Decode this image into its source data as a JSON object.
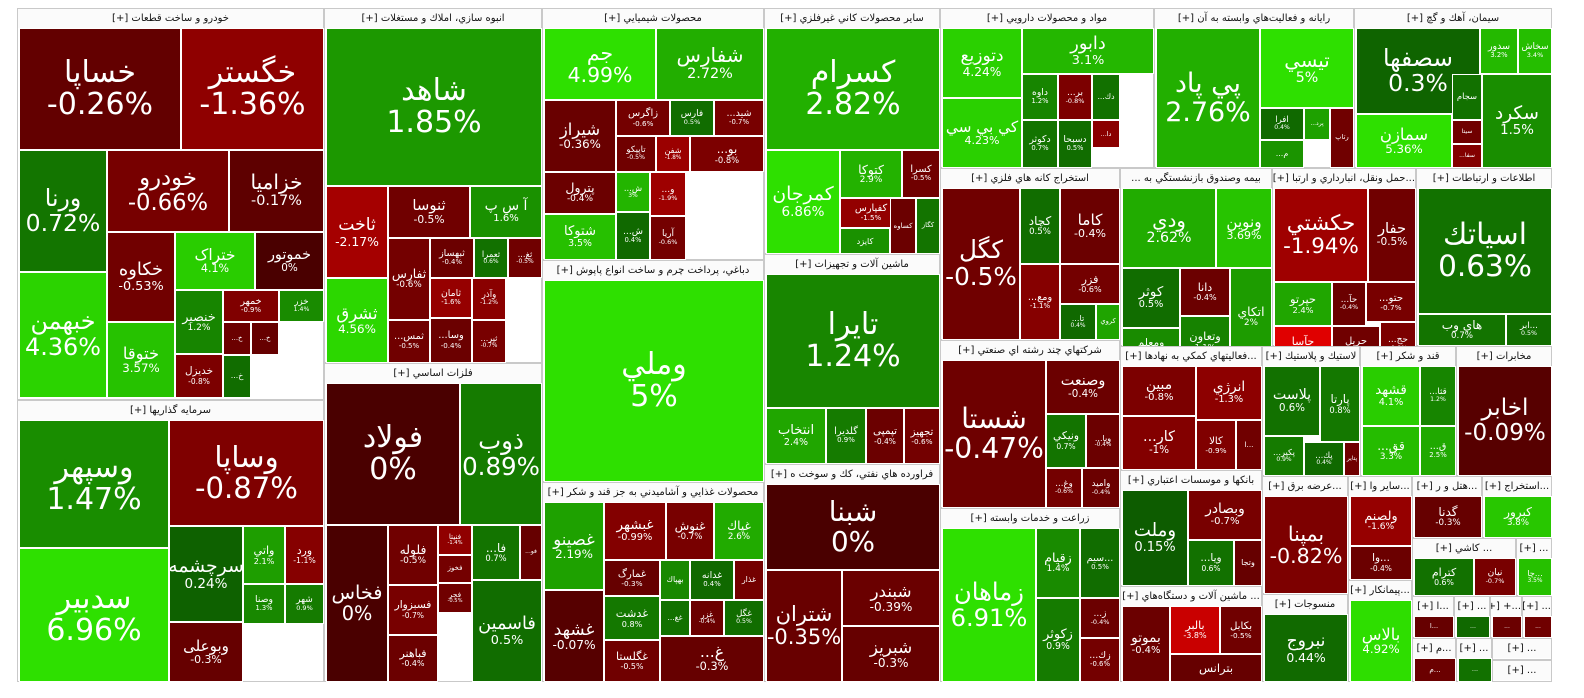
{
  "chart_data": {
    "type": "treemap",
    "title": "Market map",
    "scale": {
      "min": -5,
      "max": 5,
      "neg_color": "#e00000",
      "neutral_color": "#4a0000",
      "pos_color": "#2ee000"
    },
    "sectors": [
      {
        "id": "s1",
        "name": "خودرو و ساخت قطعات [+]",
        "tiles": [
          {
            "sym": "خساپا",
            "pct": -0.26
          },
          {
            "sym": "خگستر",
            "pct": -1.36
          },
          {
            "sym": "ورنا",
            "pct": 0.72
          },
          {
            "sym": "خودرو",
            "pct": -0.66
          },
          {
            "sym": "خزامیا",
            "pct": -0.17
          },
          {
            "sym": "خبهمن",
            "pct": 4.36
          },
          {
            "sym": "خکاوه",
            "pct": -0.53
          },
          {
            "sym": "ختراک",
            "pct": 4.1
          },
          {
            "sym": "خموتور",
            "pct": 0
          },
          {
            "sym": "ختوقا",
            "pct": 3.57
          },
          {
            "sym": "خنصير",
            "pct": 1.2
          },
          {
            "sym": "خمهر",
            "pct": -0.9
          },
          {
            "sym": "خزر",
            "pct": 1.4
          },
          {
            "sym": "خدیزل",
            "pct": -0.8
          },
          {
            "sym": "خ...",
            "pct": -0.4
          },
          {
            "sym": "خ...",
            "pct": -0.3
          },
          {
            "sym": "خ...",
            "pct": 0.5
          }
        ]
      },
      {
        "id": "s2",
        "name": "سرمايه گذاريها [+]",
        "tiles": [
          {
            "sym": "وسپهر",
            "pct": 1.47
          },
          {
            "sym": "وساپا",
            "pct": -0.87
          },
          {
            "sym": "سدبير",
            "pct": 6.96
          },
          {
            "sym": "سرچشمه",
            "pct": 0.24
          },
          {
            "sym": "واتي",
            "pct": 2.1
          },
          {
            "sym": "ورد",
            "pct": -1.1
          },
          {
            "sym": "وصنا",
            "pct": 1.3
          },
          {
            "sym": "شهر",
            "pct": 0.9
          },
          {
            "sym": "وبوعلی",
            "pct": -0.3
          }
        ]
      },
      {
        "id": "s3",
        "name": "انبوه سازي، املاك و مستغلات [+]",
        "tiles": [
          {
            "sym": "شاهد",
            "pct": 1.85
          },
          {
            "sym": "آ س پ",
            "pct": 1.6
          },
          {
            "sym": "ثاخت",
            "pct": -2.17
          },
          {
            "sym": "ثنوسا",
            "pct": -0.5
          },
          {
            "sym": "ثشرق",
            "pct": 4.56
          },
          {
            "sym": "ثفارس",
            "pct": -0.6
          },
          {
            "sym": "ثبهساز",
            "pct": -0.4
          },
          {
            "sym": "ثعمرا",
            "pct": 0.6
          },
          {
            "sym": "ثغ...",
            "pct": -0.5
          },
          {
            "sym": "ثامان",
            "pct": -1.6
          },
          {
            "sym": "وآذر",
            "pct": -1.2
          },
          {
            "sym": "ثمس...",
            "pct": -0.5
          },
          {
            "sym": "وسا...",
            "pct": -0.4
          },
          {
            "sym": "ثپر...",
            "pct": -0.7
          }
        ]
      },
      {
        "id": "s4",
        "name": "فلزات اساسي [+]",
        "tiles": [
          {
            "sym": "فولاد",
            "pct": 0
          },
          {
            "sym": "ذوب",
            "pct": 0.89
          },
          {
            "sym": "فخاس",
            "pct": 0
          },
          {
            "sym": "فلوله",
            "pct": -0.5
          },
          {
            "sym": "فسبزوار",
            "pct": -0.7
          },
          {
            "sym": "فباهنر",
            "pct": -0.4
          },
          {
            "sym": "فنيتا",
            "pct": -1.4
          },
          {
            "sym": "فخوز",
            "pct": -0.6
          },
          {
            "sym": "فجر",
            "pct": -0.5
          },
          {
            "sym": "فا...",
            "pct": 0.7
          },
          {
            "sym": "فو...",
            "pct": -0.3
          },
          {
            "sym": "فاسمين",
            "pct": 0.5
          }
        ]
      },
      {
        "id": "s5",
        "name": "محصولات شيميايي [+]",
        "tiles": [
          {
            "sym": "جم",
            "pct": 4.99
          },
          {
            "sym": "شفارس",
            "pct": 2.72
          },
          {
            "sym": "شيراز",
            "pct": -0.36
          },
          {
            "sym": "زاگرس",
            "pct": -0.6
          },
          {
            "sym": "فارس",
            "pct": 0.5
          },
          {
            "sym": "شيد...",
            "pct": -0.7
          },
          {
            "sym": "تاپيکو",
            "pct": -0.5
          },
          {
            "sym": "شفن",
            "pct": -1.8
          },
          {
            "sym": "بو...",
            "pct": -0.8
          },
          {
            "sym": "پترول",
            "pct": -0.4
          },
          {
            "sym": "شتوكا",
            "pct": 3.5
          },
          {
            "sym": "ش...",
            "pct": 3.0
          },
          {
            "sym": "ش...",
            "pct": 0.4
          },
          {
            "sym": "و...",
            "pct": -1.9
          },
          {
            "sym": "آريا",
            "pct": -0.6
          }
        ]
      },
      {
        "id": "s6",
        "name": "دباغي، پرداخت چرم و ساخت انواع پاپوش [+]",
        "tiles": [
          {
            "sym": "وملي",
            "pct": 5
          }
        ]
      },
      {
        "id": "s7",
        "name": "محصولات غذايي و آشاميدني به جز قند و شكر [+]",
        "tiles": [
          {
            "sym": "غصینو",
            "pct": 2.19
          },
          {
            "sym": "غبشهر",
            "pct": -0.99
          },
          {
            "sym": "غنوش",
            "pct": -0.7
          },
          {
            "sym": "غپاك",
            "pct": 2.6
          },
          {
            "sym": "غشهد",
            "pct": -0.07
          },
          {
            "sym": "غمارگ",
            "pct": -0.3
          },
          {
            "sym": "بهپاك",
            "pct": 1.3
          },
          {
            "sym": "غدانه",
            "pct": 0.4
          },
          {
            "sym": "غذار",
            "pct": -0.6
          },
          {
            "sym": "غغ...",
            "pct": 0.6
          },
          {
            "sym": "غزر",
            "pct": -0.4
          },
          {
            "sym": "غگل",
            "pct": 0.5
          },
          {
            "sym": "غدشت",
            "pct": 0.8
          },
          {
            "sym": "غگلستا",
            "pct": -0.5
          },
          {
            "sym": "غ...",
            "pct": -0.3
          }
        ]
      },
      {
        "id": "s8",
        "name": "ساير محصولات كاني غيرفلزي [+]",
        "tiles": [
          {
            "sym": "كسرام",
            "pct": 2.82
          },
          {
            "sym": "کمرجان",
            "pct": 6.86
          },
          {
            "sym": "كتوكا",
            "pct": 2.9
          },
          {
            "sym": "كسرا",
            "pct": -0.5
          },
          {
            "sym": "كفپارس",
            "pct": -1.5
          },
          {
            "sym": "كايزد",
            "pct": 1.6
          },
          {
            "sym": "كساوه",
            "pct": -0.4
          },
          {
            "sym": "كگاز",
            "pct": 0.7
          }
        ]
      },
      {
        "id": "s9",
        "name": "ماشين آلات و تجهيزات [+]",
        "tiles": [
          {
            "sym": "تايرا",
            "pct": 1.24
          },
          {
            "sym": "انتخاب",
            "pct": 2.4
          },
          {
            "sym": "گلديرا",
            "pct": 0.9
          },
          {
            "sym": "تپمپی",
            "pct": -0.4
          },
          {
            "sym": "تجهيز",
            "pct": -0.6
          }
        ]
      },
      {
        "id": "s10",
        "name": "فراورده هاي نفتي، كك و سوخت ه [+]",
        "tiles": [
          {
            "sym": "شبنا",
            "pct": 0
          },
          {
            "sym": "شتران",
            "pct": -0.35
          },
          {
            "sym": "شبندر",
            "pct": -0.39
          },
          {
            "sym": "شبريز",
            "pct": -0.3
          }
        ]
      },
      {
        "id": "s11",
        "name": "مواد و محصولات دارويي [+]",
        "tiles": [
          {
            "sym": "دتوزیع",
            "pct": 4.24
          },
          {
            "sym": "دابور",
            "pct": 3.1
          },
          {
            "sym": "کي بي سي",
            "pct": 4.23
          },
          {
            "sym": "داوه",
            "pct": 1.2
          },
          {
            "sym": "بر...",
            "pct": -0.8
          },
          {
            "sym": "دك...",
            "pct": 0.6
          },
          {
            "sym": "دكوثر",
            "pct": 0.7
          },
          {
            "sym": "دا...",
            "pct": -1.2
          },
          {
            "sym": "دسبحا",
            "pct": 0.5
          }
        ]
      },
      {
        "id": "s12",
        "name": "رايانه و فعاليت‌هاي وابسته به آن [+]",
        "tiles": [
          {
            "sym": "پي پاد",
            "pct": 2.76
          },
          {
            "sym": "تيسي",
            "pct": 5
          },
          {
            "sym": "افرا",
            "pct": 0.4
          },
          {
            "sym": "پرد...",
            "pct": 2.2
          },
          {
            "sym": "م...",
            "pct": 1.7
          },
          {
            "sym": "رتاپ",
            "pct": -0.5
          }
        ]
      },
      {
        "id": "s13",
        "name": "سيمان، آهك و گچ [+]",
        "tiles": [
          {
            "sym": "سصفها",
            "pct": 0.3
          },
          {
            "sym": "سدور",
            "pct": 3.2
          },
          {
            "sym": "سخاش",
            "pct": 3.4
          },
          {
            "sym": "سمازن",
            "pct": 5.36
          },
          {
            "sym": "سجام",
            "pct": 0.6
          },
          {
            "sym": "سيتا",
            "pct": -0.5
          },
          {
            "sym": "سفا...",
            "pct": -1.0
          },
          {
            "sym": "سکرد",
            "pct": 1.5
          }
        ]
      },
      {
        "id": "s14",
        "name": "استخراج كانه هاي فلزي [+]",
        "tiles": [
          {
            "sym": "كگل",
            "pct": -0.5
          },
          {
            "sym": "كچاد",
            "pct": 0.5
          },
          {
            "sym": "كاما",
            "pct": -0.4
          },
          {
            "sym": "فزر",
            "pct": -0.6
          },
          {
            "sym": "ومع...",
            "pct": -1.1
          },
          {
            "sym": "تا...",
            "pct": 0.4
          },
          {
            "sym": "كروي",
            "pct": 2.3
          }
        ]
      },
      {
        "id": "s15",
        "name": "بیمه وصندوق بازنشستگي به ...",
        "tiles": [
          {
            "sym": "ودي",
            "pct": 2.62
          },
          {
            "sym": "ونوين",
            "pct": 3.69
          },
          {
            "sym": "كوثر",
            "pct": 0.5
          },
          {
            "sym": "دانا",
            "pct": -0.4
          },
          {
            "sym": "ومعلم",
            "pct": 1.4
          },
          {
            "sym": "وتعاون",
            "pct": 1.1
          },
          {
            "sym": "اتكاي",
            "pct": 2.0
          }
        ]
      },
      {
        "id": "s16",
        "name": "...حمل ونقل، انبارداري و ارتبا [+]",
        "tiles": [
          {
            "sym": "حكشتي",
            "pct": -1.94
          },
          {
            "sym": "حفار",
            "pct": -0.5
          },
          {
            "sym": "حپرتو",
            "pct": 2.4
          },
          {
            "sym": "حآ...",
            "pct": -0.4
          },
          {
            "sym": "حتو...",
            "pct": -0.7
          },
          {
            "sym": "حآسا",
            "pct": -5
          },
          {
            "sym": "حريل",
            "pct": -0.5
          },
          {
            "sym": "حج...",
            "pct": -0.8
          }
        ]
      },
      {
        "id": "s17",
        "name": "اطلاعات و ارتباطات [+]",
        "tiles": [
          {
            "sym": "اسياتك",
            "pct": 0.63
          },
          {
            "sym": "هاي وب",
            "pct": 0.7
          },
          {
            "sym": "...ابر",
            "pct": 0.5
          }
        ]
      },
      {
        "id": "s18",
        "name": "شركتهاي چند رشته اي صنعتي [+]",
        "tiles": [
          {
            "sym": "شستا",
            "pct": -0.47
          },
          {
            "sym": "وصنعت",
            "pct": -0.4
          },
          {
            "sym": "ونيكي",
            "pct": 0.7
          },
          {
            "sym": "وبا...",
            "pct": -0.4
          },
          {
            "sym": "وغ...",
            "pct": -0.6
          },
          {
            "sym": "واميد",
            "pct": -0.4
          }
        ]
      },
      {
        "id": "s19",
        "name": "...فعاليتهاي كمكي به نهادها [+]",
        "tiles": [
          {
            "sym": "مبين",
            "pct": -0.8
          },
          {
            "sym": "انرژي",
            "pct": -1.3
          },
          {
            "sym": "كالا",
            "pct": -0.9
          },
          {
            "sym": "...ا",
            "pct": -0.5
          },
          {
            "sym": "كار...",
            "pct": -1.0
          }
        ]
      },
      {
        "id": "s20",
        "name": "لاستيك و پلاستيك [+]",
        "tiles": [
          {
            "sym": "پلاست",
            "pct": 0.6
          },
          {
            "sym": "پارتا",
            "pct": 0.8
          },
          {
            "sym": "پكير...",
            "pct": 0.9
          },
          {
            "sym": "پك...",
            "pct": 0.4
          },
          {
            "sym": "پتاير",
            "pct": -0.5
          }
        ]
      },
      {
        "id": "s21",
        "name": "قند و شكر [+]",
        "tiles": [
          {
            "sym": "قشهد",
            "pct": 4.1
          },
          {
            "sym": "قثا...",
            "pct": 1.2
          },
          {
            "sym": "قق...",
            "pct": 3.3
          },
          {
            "sym": "ق...",
            "pct": 2.5
          }
        ]
      },
      {
        "id": "s22",
        "name": "مخابرات [+]",
        "tiles": [
          {
            "sym": "اخابر",
            "pct": -0.09
          }
        ]
      },
      {
        "id": "s23",
        "name": "زراعت و خدمات وابسته [+]",
        "tiles": [
          {
            "sym": "زماهان",
            "pct": 6.91
          },
          {
            "sym": "زقيام",
            "pct": 1.4
          },
          {
            "sym": "...سيم",
            "pct": 0.5
          },
          {
            "sym": "زكوثر",
            "pct": 0.9
          },
          {
            "sym": "ز...",
            "pct": -0.4
          },
          {
            "sym": "زك...",
            "pct": -0.6
          }
        ]
      },
      {
        "id": "s24",
        "name": "بانكها و موسسات اعتباري [+]",
        "tiles": [
          {
            "sym": "وملت",
            "pct": 0.15
          },
          {
            "sym": "وبصادر",
            "pct": -0.7
          },
          {
            "sym": "ويا...",
            "pct": 0.6
          },
          {
            "sym": "وتجا",
            "pct": -0.3
          }
        ]
      },
      {
        "id": "s25",
        "name": "... ماشين آلات و دستگاه‌هاي [+]",
        "tiles": [
          {
            "sym": "بموتو",
            "pct": -0.4
          },
          {
            "sym": "بالبر",
            "pct": -3.8
          },
          {
            "sym": "بكابل",
            "pct": -0.5
          },
          {
            "sym": "بترانس",
            "pct": -0.3
          }
        ]
      },
      {
        "id": "s26",
        "name": "...عرضه برق [+]",
        "tiles": [
          {
            "sym": "بمپنا",
            "pct": -0.82
          }
        ]
      },
      {
        "id": "s27",
        "name": "...ساير وا [+]",
        "tiles": [
          {
            "sym": "ولصنم",
            "pct": -1.6
          },
          {
            "sym": "...وا",
            "pct": -0.4
          }
        ]
      },
      {
        "id": "s28",
        "name": "...هتل و ر [+]",
        "tiles": [
          {
            "sym": "گدنا",
            "pct": -0.3
          }
        ]
      },
      {
        "id": "s29",
        "name": "...استخراج [+]",
        "tiles": [
          {
            "sym": "كبرور",
            "pct": 3.8
          }
        ]
      },
      {
        "id": "s30",
        "name": "... كاشي [+]",
        "tiles": [
          {
            "sym": "كترام",
            "pct": 0.6
          },
          {
            "sym": "نيان",
            "pct": -0.7
          }
        ]
      },
      {
        "id": "s31",
        "name": "... [+]",
        "tiles": [
          {
            "sym": "...چا",
            "pct": 3.5
          }
        ]
      },
      {
        "id": "s32",
        "name": "...پيمانكار [+]",
        "tiles": [
          {
            "sym": "بالاس",
            "pct": 4.92
          }
        ]
      },
      {
        "id": "s33",
        "name": "منسوجات [+]",
        "tiles": [
          {
            "sym": "نبروج",
            "pct": 0.44
          }
        ]
      },
      {
        "id": "s34",
        "name": "...ا [+]",
        "tiles": [
          {
            "sym": "...ا",
            "pct": -0.3
          }
        ]
      },
      {
        "id": "s35",
        "name": "... [+]",
        "tiles": [
          {
            "sym": "...",
            "pct": 0.4
          }
        ]
      },
      {
        "id": "s36",
        "name": "...+ [+]",
        "tiles": [
          {
            "sym": "...",
            "pct": -0.4
          }
        ]
      },
      {
        "id": "s37",
        "name": "... [+]",
        "tiles": [
          {
            "sym": "...",
            "pct": -0.5
          }
        ]
      },
      {
        "id": "s38",
        "name": "...م [+]",
        "tiles": [
          {
            "sym": "...م",
            "pct": -0.4
          }
        ]
      },
      {
        "id": "s39",
        "name": "... [+]",
        "tiles": [
          {
            "sym": "...",
            "pct": 0.6
          }
        ]
      },
      {
        "id": "s40",
        "name": "... [+]",
        "tiles": [
          {
            "sym": "...",
            "pct": -0.3
          }
        ]
      },
      {
        "id": "s41",
        "name": "... [+]",
        "tiles": [
          {
            "sym": "...",
            "pct": 1.2
          }
        ]
      }
    ]
  }
}
